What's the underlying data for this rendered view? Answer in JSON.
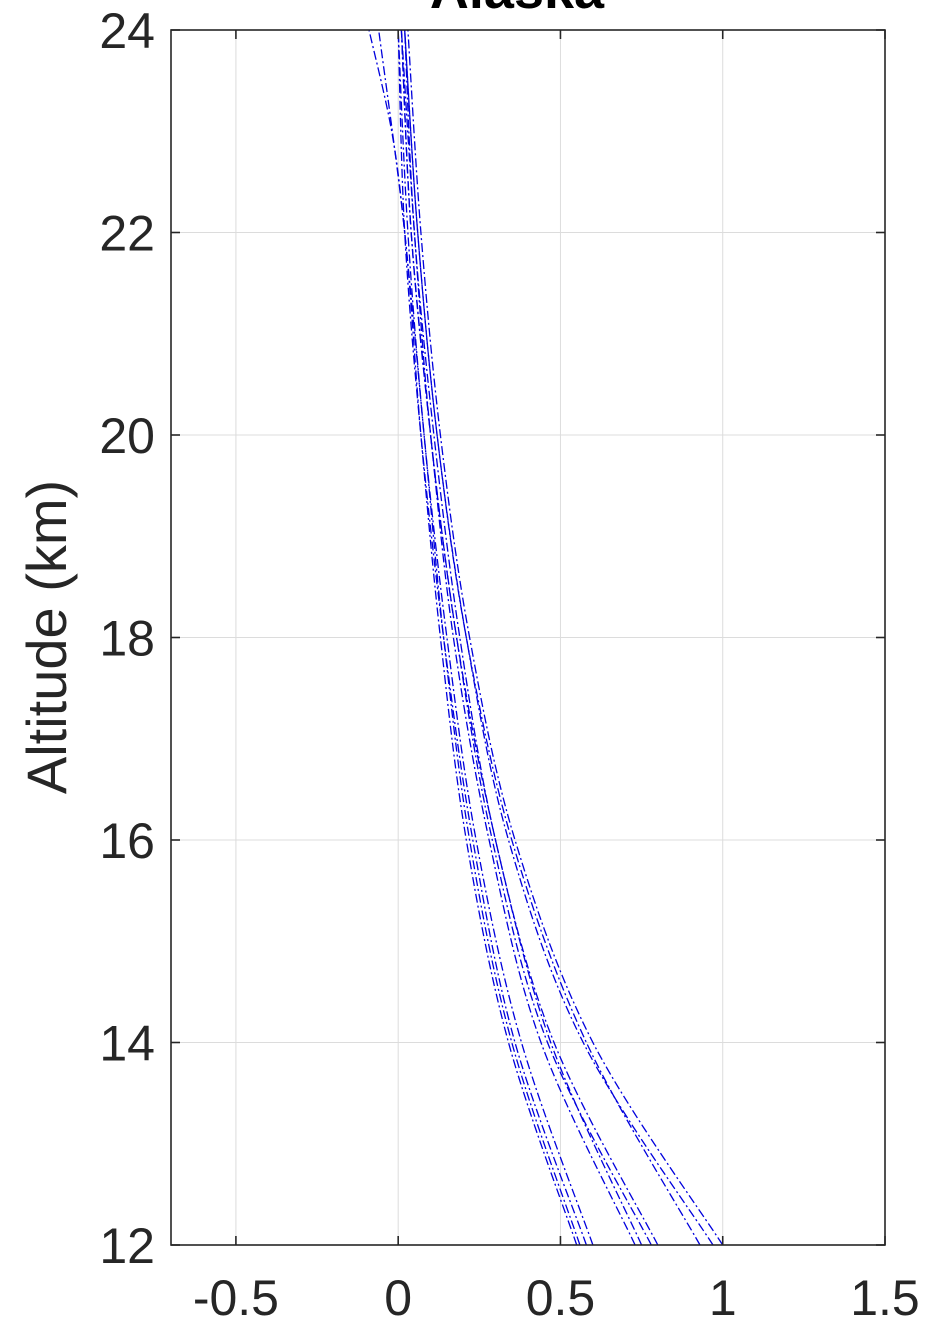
{
  "chart_data": {
    "type": "line",
    "title": "Alaska",
    "xlabel": "",
    "ylabel": "Altitude (km)",
    "xlim": [
      -0.7,
      1.5
    ],
    "ylim": [
      12,
      24
    ],
    "xticks": [
      -0.5,
      0,
      0.5,
      1,
      1.5
    ],
    "xtick_labels": [
      "-0.5",
      "0",
      "0.5",
      "1",
      "1.5"
    ],
    "yticks": [
      12,
      14,
      16,
      18,
      20,
      22,
      24
    ],
    "ytick_labels": [
      "12",
      "14",
      "16",
      "18",
      "20",
      "22",
      "24"
    ],
    "grid": true,
    "line_style": "dash-dot",
    "series_color": "#0000dd",
    "series": [
      {
        "x": [
          1.0,
          0.6,
          0.36,
          0.22,
          0.13,
          0.07,
          0.03
        ],
        "y": [
          12,
          14,
          16,
          18,
          20,
          22,
          24
        ]
      },
      {
        "x": [
          0.97,
          0.57,
          0.34,
          0.21,
          0.12,
          0.06,
          0.02
        ],
        "y": [
          12,
          14,
          16,
          18,
          20,
          22,
          24
        ]
      },
      {
        "x": [
          0.93,
          0.58,
          0.35,
          0.21,
          0.12,
          0.06,
          0.02
        ],
        "y": [
          12,
          14,
          16,
          18,
          20,
          22,
          24
        ]
      },
      {
        "x": [
          0.8,
          0.48,
          0.3,
          0.19,
          0.11,
          0.05,
          0.02
        ],
        "y": [
          12,
          14,
          16,
          18,
          20,
          22,
          24
        ]
      },
      {
        "x": [
          0.78,
          0.46,
          0.29,
          0.18,
          0.1,
          0.05,
          0.01
        ],
        "y": [
          12,
          14,
          16,
          18,
          20,
          22,
          24
        ]
      },
      {
        "x": [
          0.75,
          0.47,
          0.3,
          0.18,
          0.1,
          0.04,
          0.01
        ],
        "y": [
          12,
          14,
          16,
          18,
          20,
          22,
          24
        ]
      },
      {
        "x": [
          0.73,
          0.44,
          0.28,
          0.17,
          0.1,
          0.04,
          0.01
        ],
        "y": [
          12,
          14,
          16,
          18,
          20,
          22,
          24
        ]
      },
      {
        "x": [
          0.6,
          0.38,
          0.24,
          0.15,
          0.08,
          0.03,
          0.0
        ],
        "y": [
          12,
          14,
          16,
          18,
          20,
          22,
          24
        ]
      },
      {
        "x": [
          0.58,
          0.36,
          0.23,
          0.14,
          0.07,
          0.02,
          0.0
        ],
        "y": [
          12,
          14,
          16,
          18,
          20,
          22,
          24
        ]
      },
      {
        "x": [
          0.56,
          0.35,
          0.22,
          0.14,
          0.08,
          0.02,
          -0.02,
          -0.09
        ],
        "y": [
          12,
          14,
          16,
          18,
          20,
          22,
          23,
          24
        ]
      },
      {
        "x": [
          0.55,
          0.34,
          0.21,
          0.13,
          0.07,
          0.02,
          -0.06
        ],
        "y": [
          12,
          14,
          16,
          18,
          20,
          22,
          24
        ]
      }
    ]
  }
}
